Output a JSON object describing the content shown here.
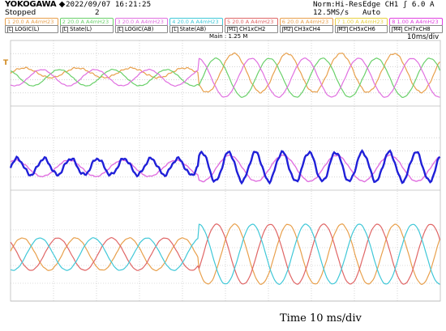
{
  "header": {
    "brand": "YOKOGAWA ◆",
    "run_status": "Stopped",
    "datetime": "2022/09/07  16:21:25",
    "acq_count": "2",
    "acq_mode": "Norm:Hi-Res",
    "sample_rate": "12.5MS/s",
    "trigger": "Edge CH1 ʃ 6.0 A",
    "trigger_mode": "Auto"
  },
  "channels": [
    {
      "label": "1 20.0 A A4mH23",
      "color": "#e8a04c"
    },
    {
      "label": "2 20.0 A A4mH23",
      "color": "#6ad06a"
    },
    {
      "label": "3 20.0 A A4mH23",
      "color": "#e070e0"
    },
    {
      "label": "4 20.0 A A4mH23",
      "color": "#40c8d8"
    },
    {
      "label": "5 20.0 A A4mH23",
      "color": "#e06666"
    },
    {
      "label": "6 20.0 A A4mH23",
      "color": "#e8a04c"
    },
    {
      "label": "7 1.00 A A4mH23",
      "color": "#e8d040"
    },
    {
      "label": "8 1.00 A A4mH23",
      "color": "#e040e0"
    }
  ],
  "logic": [
    {
      "num": "L",
      "label": "LOGIC(L)"
    },
    {
      "num": "L",
      "label": "State(L)"
    },
    {
      "num": "L",
      "label": "LOGIC(AB)"
    },
    {
      "num": "L",
      "label": "State(AB)"
    },
    {
      "num": "M1",
      "label": "CH1xCH2"
    },
    {
      "num": "M2",
      "label": "CH3xCH4"
    },
    {
      "num": "M3",
      "label": "CH5xCH6"
    },
    {
      "num": "M4",
      "label": "CH7xCH8"
    }
  ],
  "main_label": "Main : 1.25 M",
  "time_div": "10ms/div",
  "trigger_marker": "T",
  "footer": "Time 10 ms/div",
  "colors": {
    "orange": "#e8a04c",
    "green": "#6ad06a",
    "magenta": "#e070e0",
    "blue": "#2020d8",
    "cyan": "#40c8d8",
    "red": "#e06666",
    "grid": "#bbbbbb"
  },
  "traces": {
    "group1": [
      "orange",
      "green",
      "magenta"
    ],
    "group2": [
      "blue",
      "magenta"
    ],
    "group3": [
      "orange",
      "red",
      "cyan"
    ]
  }
}
